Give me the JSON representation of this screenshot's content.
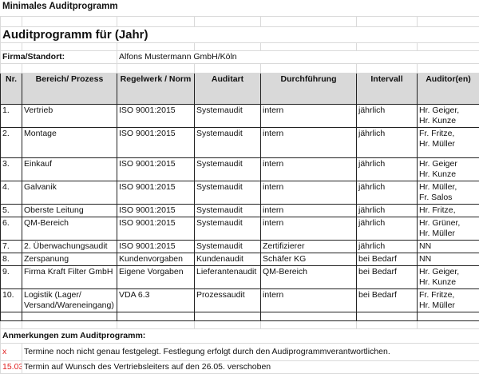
{
  "sheet": {
    "title": "Minimales Auditprogramm",
    "heading": "Auditprogramm für (Jahr)",
    "firma_label": "Firma/Standort:",
    "firma_value": "Alfons Mustermann GmbH/Köln"
  },
  "table": {
    "headers": [
      "Nr.",
      "Bereich/ Prozess",
      "Regelwerk / Norm",
      "Auditart",
      "Durchführung",
      "Intervall",
      "Auditor(en)"
    ],
    "rows": [
      [
        "1.",
        "Vertrieb",
        "ISO 9001:2015",
        "Systemaudit",
        "intern",
        "jährlich",
        "Hr. Geiger,\nHr. Kunze"
      ],
      [
        "2.",
        "Montage",
        "ISO 9001:2015",
        "Systemaudit",
        "intern",
        "jährlich",
        "Fr. Fritze,\nHr. Müller"
      ],
      [
        "3.",
        "Einkauf",
        "ISO 9001:2015",
        "Systemaudit",
        "intern",
        "jährlich",
        "Hr. Geiger\nHr. Kunze"
      ],
      [
        "4.",
        "Galvanik",
        "ISO 9001:2015",
        "Systemaudit",
        "intern",
        "jährlich",
        "Hr. Müller,\nFr. Salos"
      ],
      [
        "5.",
        "Oberste Leitung",
        "ISO 9001:2015",
        "Systemaudit",
        "intern",
        "jährlich",
        "Hr. Fritze,"
      ],
      [
        "6.",
        "QM-Bereich",
        "ISO 9001:2015",
        "Systemaudit",
        "intern",
        "jährlich",
        "Hr. Grüner,\nHr. Müller"
      ],
      [
        "7.",
        "2. Überwachungsaudit",
        "ISO 9001:2015",
        "Systemaudit",
        "Zertifizierer",
        "jährlich",
        "NN"
      ],
      [
        "8.",
        "Zerspanung",
        "Kundenvorgaben",
        "Kundenaudit",
        "Schäfer KG",
        "bei Bedarf",
        "NN"
      ],
      [
        "9.",
        "Firma Kraft Filter GmbH",
        "Eigene Vorgaben",
        "Lieferantenaudit",
        "QM-Bereich",
        "bei Bedarf",
        "Hr. Geiger,\nHr. Kunze"
      ],
      [
        "10.",
        "Logistik (Lager/\nVersand/Wareneingang)",
        "VDA 6.3",
        "Prozessaudit",
        "intern",
        "bei Bedarf",
        "Fr. Fritze,\nHr. Müller"
      ]
    ]
  },
  "notes": {
    "title": "Anmerkungen zum Auditprogramm:",
    "items": [
      {
        "marker": "x",
        "text": "Termine noch nicht genau festgelegt. Festlegung erfolgt durch den Audiprogrammverantwortlichen."
      },
      {
        "marker": "15.03.",
        "text": "Termin auf Wunsch des Vertriebsleiters auf den 26.05. verschoben"
      }
    ],
    "marker_color": "#e02020"
  }
}
